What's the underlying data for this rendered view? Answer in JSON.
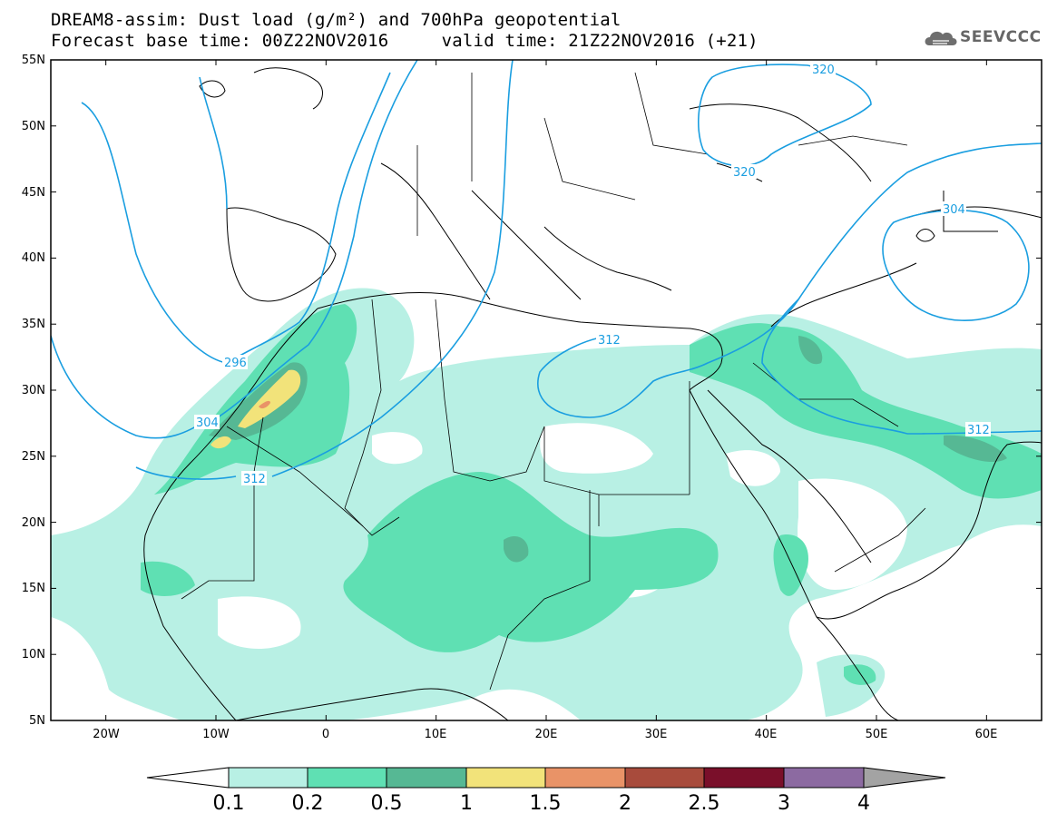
{
  "header": {
    "line1": "DREAM8-assim: Dust load (g/m²) and 700hPa geopotential",
    "line2": "Forecast base time: 00Z22NOV2016     valid time: 21Z22NOV2016 (+21)"
  },
  "logo": {
    "text": "SEEVCCC"
  },
  "map": {
    "lat_labels": [
      "55N",
      "50N",
      "45N",
      "40N",
      "35N",
      "30N",
      "25N",
      "20N",
      "15N",
      "10N",
      "5N"
    ],
    "lon_labels": [
      "20W",
      "10W",
      "0",
      "10E",
      "20E",
      "30E",
      "40E",
      "50E",
      "60E"
    ],
    "lon_range": [
      -25,
      65
    ],
    "lat_range": [
      5,
      55
    ],
    "contours": [
      {
        "label": "296",
        "value": 296
      },
      {
        "label": "304",
        "value": 304
      },
      {
        "label": "312",
        "value": 312
      },
      {
        "label": "312",
        "value": 312
      },
      {
        "label": "312",
        "value": 312
      },
      {
        "label": "320",
        "value": 320
      },
      {
        "label": "320",
        "value": 320
      },
      {
        "label": "304",
        "value": 304
      }
    ]
  },
  "colorbar": {
    "labels": [
      "0.1",
      "0.2",
      "0.5",
      "1",
      "1.5",
      "2",
      "2.5",
      "3",
      "4"
    ],
    "colors": [
      "#b8f0e4",
      "#5fe0b3",
      "#56b894",
      "#f2e37a",
      "#e99367",
      "#a84b3c",
      "#7a0f2a",
      "#8c6aa1",
      "#a3a3a3"
    ]
  }
}
